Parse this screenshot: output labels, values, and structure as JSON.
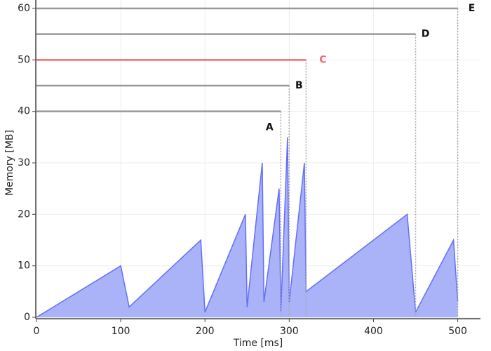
{
  "chart_data": {
    "type": "area",
    "x_label": "Time [ms]",
    "y_label": "Memory [MB]",
    "x": [
      0,
      100,
      110,
      195,
      200,
      248,
      250,
      268,
      270,
      288,
      290,
      298,
      300,
      318,
      320,
      440,
      450,
      495,
      500
    ],
    "values": [
      0,
      10,
      2,
      15,
      1,
      20,
      2,
      30,
      3,
      25,
      1,
      35,
      3,
      30,
      5,
      20,
      1,
      15,
      3
    ],
    "color": "#636efa",
    "fill": "#aab2f8",
    "deadlines": [
      {
        "label": "A",
        "value": 40,
        "end": 290,
        "color": "#999999"
      },
      {
        "label": "B",
        "value": 45,
        "end": 300,
        "color": "#999999"
      },
      {
        "label": "C",
        "value": 50,
        "end": 320,
        "color": "#f26b6b"
      },
      {
        "label": "D",
        "value": 55,
        "end": 450,
        "color": "#999999"
      },
      {
        "label": "E",
        "value": 60,
        "end": 500,
        "color": "#999999"
      }
    ],
    "xlim": [
      0,
      527
    ],
    "ylim": [
      0,
      60
    ],
    "xticks": [
      0,
      100,
      200,
      300,
      400,
      500
    ],
    "yticks": [
      0,
      10,
      20,
      30,
      40,
      50,
      60
    ],
    "grid": true
  }
}
